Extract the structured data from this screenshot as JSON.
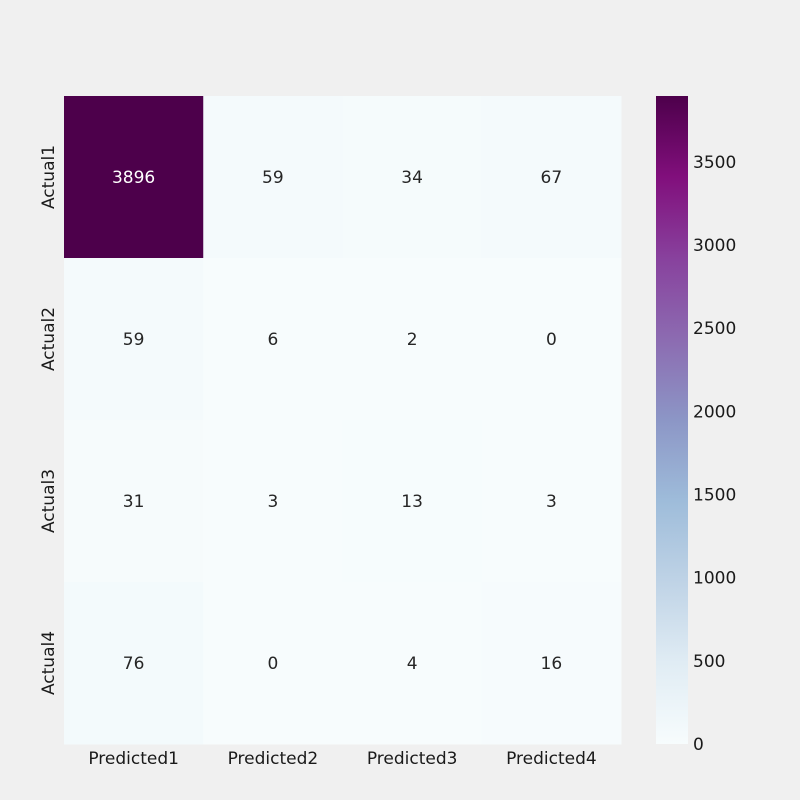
{
  "chart_data": {
    "type": "heatmap",
    "title": "",
    "xlabel": "",
    "ylabel": "",
    "x_categories": [
      "Predicted1",
      "Predicted2",
      "Predicted3",
      "Predicted4"
    ],
    "y_categories": [
      "Actual1",
      "Actual2",
      "Actual3",
      "Actual4"
    ],
    "values": [
      [
        3896,
        59,
        34,
        67
      ],
      [
        59,
        6,
        2,
        0
      ],
      [
        31,
        3,
        13,
        3
      ],
      [
        76,
        0,
        4,
        16
      ]
    ],
    "colormap": "BuPu",
    "color_range": [
      0,
      3896
    ],
    "colorbar_ticks": [
      0,
      500,
      1000,
      1500,
      2000,
      2500,
      3000,
      3500
    ],
    "colorbar_tick_labels": [
      "0",
      "500",
      "1000",
      "1500",
      "2000",
      "2500",
      "3000",
      "3500"
    ],
    "colorbar_placement": "right",
    "annotation_color_dark": "#262626",
    "annotation_color_light": "#ffffff"
  }
}
